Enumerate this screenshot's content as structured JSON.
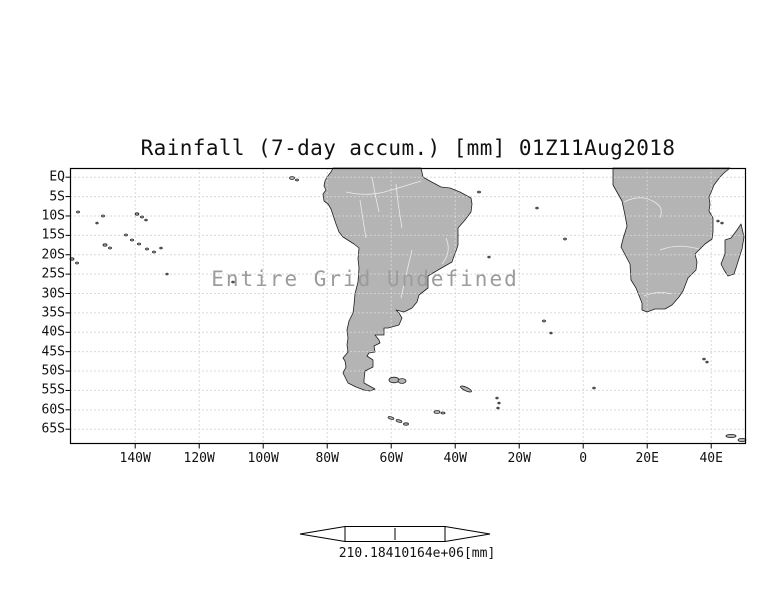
{
  "title": "Rainfall (7-day accum.) [mm] 01Z11Aug2018",
  "undefined_message": "Entire Grid Undefined",
  "axes": {
    "y_ticks": [
      "EQ",
      "5S",
      "10S",
      "15S",
      "20S",
      "25S",
      "30S",
      "35S",
      "40S",
      "45S",
      "50S",
      "55S",
      "60S",
      "65S"
    ],
    "x_ticks": [
      "140W",
      "120W",
      "100W",
      "80W",
      "60W",
      "40W",
      "20W",
      "0",
      "20E",
      "40E"
    ]
  },
  "colorbar": {
    "value_label": "210.18410164e+06",
    "units_label": "[mm]"
  },
  "colors": {
    "land": "#b4b4b4",
    "coastline": "#1f1f1f",
    "grid": "#b3b3b3",
    "message_gray": "#9c9c9c"
  }
}
